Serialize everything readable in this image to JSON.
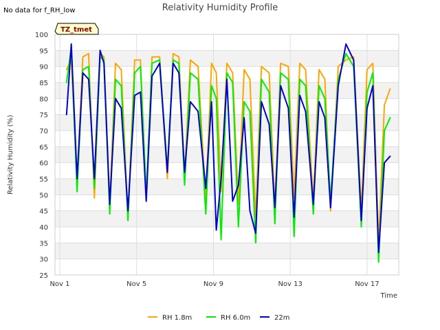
{
  "page": {
    "no_data_note": "No data for f_RH_low",
    "tag_label": "TZ_tmet"
  },
  "chart_data": {
    "type": "line",
    "title": "Relativity Humidity Profile",
    "xlabel": "Time",
    "ylabel": "Relativity Humidity (%)",
    "xlim": [
      0.75,
      18.65
    ],
    "ylim": [
      25,
      100
    ],
    "yticks": [
      25,
      30,
      35,
      40,
      45,
      50,
      55,
      60,
      65,
      70,
      75,
      80,
      85,
      90,
      95,
      100
    ],
    "xticks": [
      {
        "value": 1,
        "label": "Nov 1"
      },
      {
        "value": 5,
        "label": "Nov 5"
      },
      {
        "value": 9,
        "label": "Nov 9"
      },
      {
        "value": 13,
        "label": "Nov 13"
      },
      {
        "value": 17,
        "label": "Nov 17"
      }
    ],
    "grid": true,
    "legend_position": "bottom-center",
    "x_units": "day of November",
    "series": [
      {
        "name": "RH 1.8m",
        "color": "#ffa500",
        "x": [
          1.35,
          1.6,
          1.9,
          2.2,
          2.5,
          2.8,
          3.1,
          3.3,
          3.6,
          3.9,
          4.2,
          4.55,
          4.9,
          5.2,
          5.5,
          5.8,
          6.2,
          6.6,
          6.9,
          7.2,
          7.5,
          7.8,
          8.2,
          8.6,
          8.9,
          9.15,
          9.4,
          9.7,
          10.0,
          10.3,
          10.6,
          10.9,
          11.2,
          11.5,
          11.9,
          12.2,
          12.5,
          12.9,
          13.2,
          13.5,
          13.8,
          14.2,
          14.5,
          14.8,
          15.1,
          15.5,
          15.9,
          16.3,
          16.7,
          17.0,
          17.3,
          17.6,
          17.9,
          18.2
        ],
        "values": [
          89,
          92,
          54,
          93,
          94,
          49,
          94,
          93,
          47,
          91,
          89,
          43,
          92,
          92,
          49,
          93,
          93,
          55,
          94,
          93,
          56,
          92,
          90,
          48,
          91,
          88,
          51,
          91,
          88,
          47,
          89,
          86,
          43,
          90,
          88,
          46,
          91,
          90,
          49,
          91,
          89,
          48,
          89,
          86,
          45,
          90,
          92,
          93,
          45,
          89,
          91,
          35,
          78,
          83
        ]
      },
      {
        "name": "RH 6.0m",
        "color": "#00ee00",
        "x": [
          1.35,
          1.6,
          1.9,
          2.2,
          2.5,
          2.8,
          3.1,
          3.3,
          3.6,
          3.9,
          4.2,
          4.55,
          4.9,
          5.2,
          5.5,
          5.8,
          6.2,
          6.6,
          6.9,
          7.2,
          7.5,
          7.8,
          8.2,
          8.6,
          8.9,
          9.15,
          9.4,
          9.7,
          10.0,
          10.3,
          10.6,
          10.9,
          11.2,
          11.5,
          11.9,
          12.2,
          12.5,
          12.9,
          13.2,
          13.5,
          13.8,
          14.2,
          14.5,
          14.8,
          15.1,
          15.5,
          15.9,
          16.3,
          16.7,
          17.0,
          17.3,
          17.6,
          17.9,
          18.2
        ],
        "values": [
          85,
          96,
          51,
          89,
          90,
          52,
          93,
          92,
          44,
          86,
          84,
          42,
          88,
          90,
          50,
          91,
          92,
          58,
          92,
          91,
          53,
          88,
          86,
          44,
          84,
          80,
          36,
          88,
          85,
          40,
          79,
          76,
          35,
          86,
          82,
          41,
          88,
          86,
          37,
          86,
          84,
          44,
          84,
          80,
          48,
          86,
          94,
          90,
          40,
          82,
          88,
          29,
          70,
          74
        ]
      },
      {
        "name": "22m",
        "color": "#0000cc",
        "x": [
          1.35,
          1.6,
          1.9,
          2.2,
          2.5,
          2.8,
          3.1,
          3.3,
          3.6,
          3.9,
          4.2,
          4.55,
          4.9,
          5.2,
          5.5,
          5.8,
          6.2,
          6.6,
          6.9,
          7.2,
          7.5,
          7.8,
          8.2,
          8.6,
          8.9,
          9.15,
          9.4,
          9.7,
          10.0,
          10.3,
          10.6,
          10.9,
          11.2,
          11.5,
          11.9,
          12.2,
          12.5,
          12.9,
          13.2,
          13.5,
          13.8,
          14.2,
          14.5,
          14.8,
          15.1,
          15.5,
          15.9,
          16.3,
          16.7,
          17.0,
          17.3,
          17.6,
          17.9,
          18.2
        ],
        "values": [
          75,
          97,
          55,
          88,
          86,
          55,
          95,
          91,
          47,
          80,
          77,
          45,
          81,
          82,
          48,
          87,
          91,
          57,
          91,
          88,
          57,
          79,
          76,
          52,
          79,
          39,
          55,
          86,
          48,
          53,
          74,
          45,
          38,
          79,
          72,
          46,
          84,
          77,
          43,
          81,
          76,
          47,
          79,
          74,
          46,
          84,
          97,
          92,
          42,
          77,
          84,
          32,
          60,
          62
        ]
      }
    ]
  }
}
